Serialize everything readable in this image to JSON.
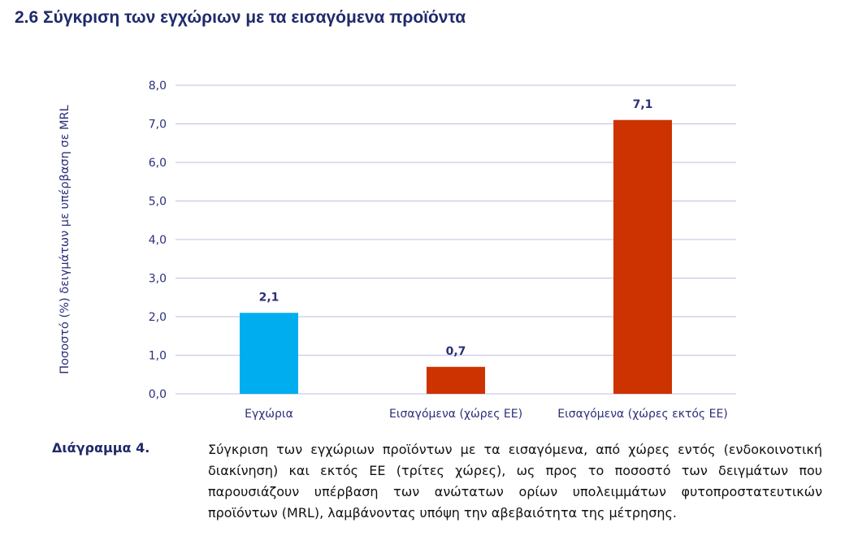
{
  "heading": "2.6 Σύγκριση των εγχώριων με τα εισαγόμενα προϊόντα",
  "caption": {
    "label": "Διάγραμμα 4.",
    "text": "Σύγκριση των εγχώριων προϊόντων με τα εισαγόμενα, από χώρες εντός (ενδοκοινοτική διακίνηση) και εκτός ΕΕ (τρίτες χώρες), ως προς το ποσοστό των δειγμάτων που παρουσιάζουν υπέρβαση των ανώτατων ορίων υπολειμμάτων φυτοπροστατευτικών προϊόντων (MRL), λαμβάνοντας υπόψη την αβεβαιότητα της μέτρησης."
  },
  "chart_data": {
    "type": "bar",
    "categories": [
      "Εγχώρια",
      "Εισαγόμενα (χώρες ΕΕ)",
      "Εισαγόμενα (χώρες εκτός ΕΕ)"
    ],
    "values": [
      2.1,
      0.7,
      7.1
    ],
    "value_labels": [
      "2,1",
      "0,7",
      "7,1"
    ],
    "colors": [
      "#00aeef",
      "#cc3300",
      "#cc3300"
    ],
    "ylabel": "Ποσοστό (%) δειγμάτων με υπέρβαση σε MRL",
    "xlabel": "",
    "ylim": [
      0,
      8
    ],
    "yticks": [
      "0,0",
      "1,0",
      "2,0",
      "3,0",
      "4,0",
      "5,0",
      "6,0",
      "7,0",
      "8,0"
    ],
    "grid": true,
    "gridline_color": "#c9c9e6",
    "label_color": "#2b2f7a"
  }
}
